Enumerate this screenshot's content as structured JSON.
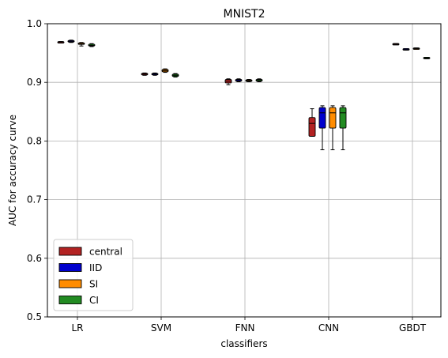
{
  "chart_data": {
    "type": "box",
    "title": "MNIST2",
    "xlabel": "classifiers",
    "ylabel": "AUC for accuracy curve",
    "ylim": [
      0.5,
      1.0
    ],
    "yticks": [
      "0.5",
      "0.6",
      "0.7",
      "0.8",
      "0.9",
      "1.0"
    ],
    "grid": true,
    "legend_position": "lower-left",
    "categories": [
      "LR",
      "SVM",
      "FNN",
      "CNN",
      "GBDT"
    ],
    "series": [
      {
        "name": "central",
        "color": "#b22222",
        "boxes": [
          {
            "whislo": 0.967,
            "q1": 0.9675,
            "med": 0.968,
            "q3": 0.969,
            "whishi": 0.9695
          },
          {
            "whislo": 0.912,
            "q1": 0.9125,
            "med": 0.914,
            "q3": 0.9155,
            "whishi": 0.916
          },
          {
            "whislo": 0.896,
            "q1": 0.899,
            "med": 0.902,
            "q3": 0.905,
            "whishi": 0.906
          },
          {
            "whislo": 0.808,
            "q1": 0.808,
            "med": 0.83,
            "q3": 0.84,
            "whishi": 0.855
          },
          {
            "whislo": 0.9645,
            "q1": 0.9647,
            "med": 0.965,
            "q3": 0.9653,
            "whishi": 0.9655
          }
        ]
      },
      {
        "name": "IID",
        "color": "#0000cd",
        "boxes": [
          {
            "whislo": 0.968,
            "q1": 0.969,
            "med": 0.97,
            "q3": 0.971,
            "whishi": 0.972
          },
          {
            "whislo": 0.912,
            "q1": 0.913,
            "med": 0.914,
            "q3": 0.915,
            "whishi": 0.916
          },
          {
            "whislo": 0.901,
            "q1": 0.902,
            "med": 0.903,
            "q3": 0.905,
            "whishi": 0.906
          },
          {
            "whislo": 0.785,
            "q1": 0.822,
            "med": 0.848,
            "q3": 0.857,
            "whishi": 0.86
          },
          {
            "whislo": 0.955,
            "q1": 0.9555,
            "med": 0.956,
            "q3": 0.957,
            "whishi": 0.9575
          }
        ]
      },
      {
        "name": "SI",
        "color": "#ff8c00",
        "boxes": [
          {
            "whislo": 0.962,
            "q1": 0.965,
            "med": 0.966,
            "q3": 0.967,
            "whishi": 0.968
          },
          {
            "whislo": 0.917,
            "q1": 0.918,
            "med": 0.92,
            "q3": 0.922,
            "whishi": 0.923
          },
          {
            "whislo": 0.901,
            "q1": 0.902,
            "med": 0.903,
            "q3": 0.904,
            "whishi": 0.905
          },
          {
            "whislo": 0.785,
            "q1": 0.822,
            "med": 0.848,
            "q3": 0.857,
            "whishi": 0.86
          },
          {
            "whislo": 0.9565,
            "q1": 0.957,
            "med": 0.9575,
            "q3": 0.958,
            "whishi": 0.9585
          }
        ]
      },
      {
        "name": "CI",
        "color": "#228b22",
        "boxes": [
          {
            "whislo": 0.961,
            "q1": 0.962,
            "med": 0.963,
            "q3": 0.965,
            "whishi": 0.966
          },
          {
            "whislo": 0.909,
            "q1": 0.91,
            "med": 0.912,
            "q3": 0.914,
            "whishi": 0.915
          },
          {
            "whislo": 0.901,
            "q1": 0.902,
            "med": 0.903,
            "q3": 0.905,
            "whishi": 0.906
          },
          {
            "whislo": 0.785,
            "q1": 0.822,
            "med": 0.848,
            "q3": 0.857,
            "whishi": 0.86
          },
          {
            "whislo": 0.9405,
            "q1": 0.941,
            "med": 0.9415,
            "q3": 0.942,
            "whishi": 0.9425
          }
        ]
      }
    ]
  }
}
